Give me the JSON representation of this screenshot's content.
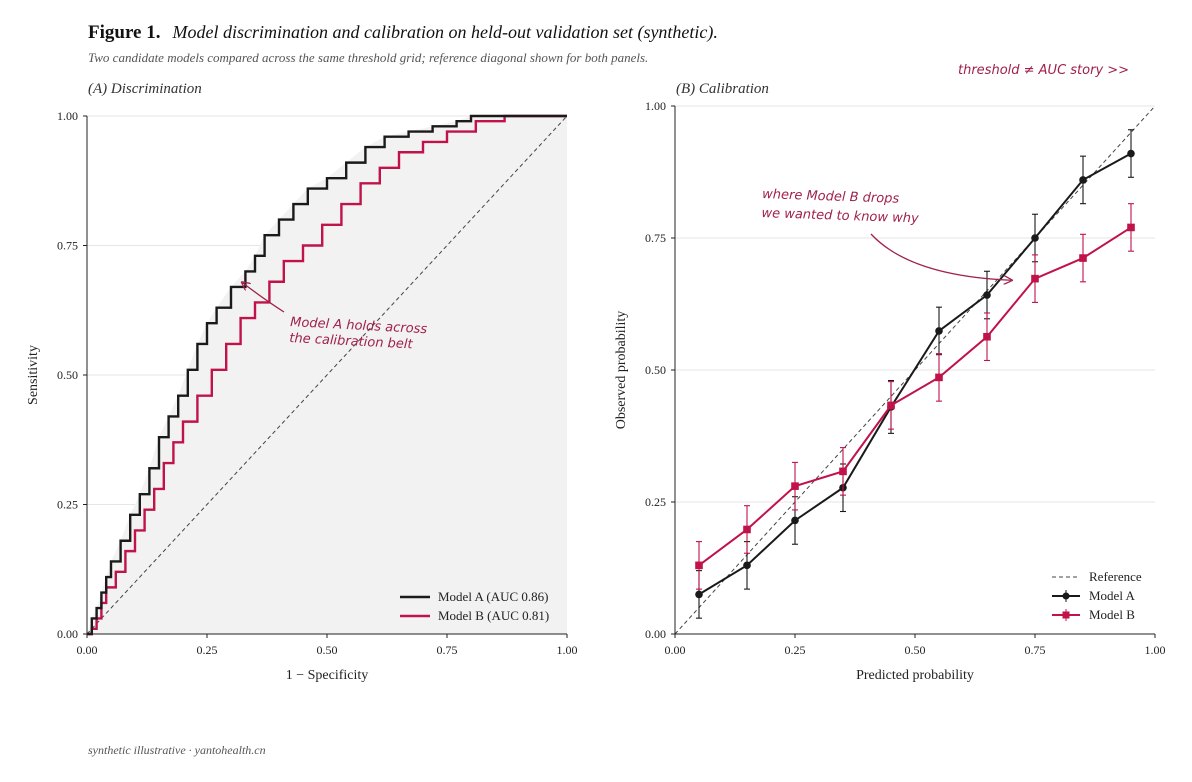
{
  "figure": {
    "label": "Figure 1.",
    "title": "Model discrimination and calibration on held-out validation set (synthetic).",
    "subtitle": "Two candidate models compared across the same threshold grid; reference diagonal shown for both panels.",
    "footer": "synthetic illustrative · yantohealth.cn",
    "corner_note": "threshold ≠ AUC story  >>"
  },
  "colors": {
    "model_a": "#1a1a1a",
    "model_b": "#c0134a",
    "note": "#a0214a",
    "band": "#f2f2f2",
    "grid": "#e6e6e6"
  },
  "chart_data": [
    {
      "type": "line",
      "panel_label": "(A)  Discrimination",
      "xlabel": "1 − Specificity",
      "ylabel": "Sensitivity",
      "xlim": [
        0,
        1
      ],
      "ylim": [
        0,
        1
      ],
      "x_ticks": [
        "0.00",
        "0.25",
        "0.50",
        "0.75",
        "1.00"
      ],
      "y_ticks": [
        "0.00",
        "0.25",
        "0.50",
        "0.75",
        "1.00"
      ],
      "grid": "horizontal",
      "legend_position": "bottom-right",
      "reference_diagonal": true,
      "series": [
        {
          "name": "Model A  (AUC 0.86)",
          "key": "model_a",
          "points": [
            [
              0,
              0
            ],
            [
              0.01,
              0.03
            ],
            [
              0.02,
              0.05
            ],
            [
              0.03,
              0.08
            ],
            [
              0.04,
              0.11
            ],
            [
              0.05,
              0.14
            ],
            [
              0.07,
              0.18
            ],
            [
              0.09,
              0.23
            ],
            [
              0.11,
              0.27
            ],
            [
              0.13,
              0.32
            ],
            [
              0.15,
              0.38
            ],
            [
              0.17,
              0.42
            ],
            [
              0.19,
              0.46
            ],
            [
              0.21,
              0.51
            ],
            [
              0.23,
              0.56
            ],
            [
              0.25,
              0.6
            ],
            [
              0.27,
              0.63
            ],
            [
              0.3,
              0.67
            ],
            [
              0.33,
              0.7
            ],
            [
              0.35,
              0.73
            ],
            [
              0.37,
              0.77
            ],
            [
              0.4,
              0.8
            ],
            [
              0.43,
              0.83
            ],
            [
              0.46,
              0.86
            ],
            [
              0.5,
              0.88
            ],
            [
              0.54,
              0.91
            ],
            [
              0.58,
              0.94
            ],
            [
              0.62,
              0.96
            ],
            [
              0.67,
              0.97
            ],
            [
              0.72,
              0.98
            ],
            [
              0.77,
              0.99
            ],
            [
              0.8,
              1.0
            ],
            [
              1,
              1
            ]
          ]
        },
        {
          "name": "Model B  (AUC 0.81)",
          "key": "model_b",
          "points": [
            [
              0,
              0
            ],
            [
              0.01,
              0.01
            ],
            [
              0.02,
              0.03
            ],
            [
              0.03,
              0.06
            ],
            [
              0.04,
              0.09
            ],
            [
              0.06,
              0.12
            ],
            [
              0.08,
              0.16
            ],
            [
              0.1,
              0.2
            ],
            [
              0.12,
              0.24
            ],
            [
              0.14,
              0.28
            ],
            [
              0.16,
              0.33
            ],
            [
              0.18,
              0.37
            ],
            [
              0.2,
              0.41
            ],
            [
              0.23,
              0.46
            ],
            [
              0.26,
              0.51
            ],
            [
              0.29,
              0.56
            ],
            [
              0.32,
              0.61
            ],
            [
              0.35,
              0.64
            ],
            [
              0.38,
              0.68
            ],
            [
              0.41,
              0.72
            ],
            [
              0.45,
              0.75
            ],
            [
              0.49,
              0.79
            ],
            [
              0.53,
              0.83
            ],
            [
              0.57,
              0.87
            ],
            [
              0.61,
              0.9
            ],
            [
              0.65,
              0.93
            ],
            [
              0.7,
              0.95
            ],
            [
              0.75,
              0.97
            ],
            [
              0.81,
              0.99
            ],
            [
              0.87,
              1.0
            ],
            [
              1,
              1
            ]
          ]
        }
      ],
      "annotation": {
        "text_lines": [
          "Model A holds across",
          "the calibration belt"
        ],
        "points_to": [
          0.32,
          0.68
        ]
      }
    },
    {
      "type": "line",
      "panel_label": "(B)  Calibration",
      "xlabel": "Predicted probability",
      "ylabel": "Observed probability",
      "xlim": [
        0,
        1
      ],
      "ylim": [
        0,
        1
      ],
      "x_ticks": [
        "0.00",
        "0.25",
        "0.50",
        "0.75",
        "1.00"
      ],
      "y_ticks": [
        "0.00",
        "0.25",
        "0.50",
        "0.75",
        "1.00"
      ],
      "grid": "horizontal",
      "legend_position": "bottom-right",
      "x": [
        0.05,
        0.15,
        0.25,
        0.35,
        0.45,
        0.55,
        0.65,
        0.75,
        0.85,
        0.95
      ],
      "series": [
        {
          "name": "Reference",
          "key": "reference",
          "style": "dashed"
        },
        {
          "name": "Model A",
          "key": "model_a",
          "marker": "circle",
          "values": [
            0.075,
            0.13,
            0.215,
            0.277,
            0.43,
            0.574,
            0.642,
            0.75,
            0.86,
            0.91
          ],
          "err": [
            0.045,
            0.045,
            0.045,
            0.045,
            0.05,
            0.045,
            0.045,
            0.045,
            0.045,
            0.045
          ]
        },
        {
          "name": "Model B",
          "key": "model_b",
          "marker": "square",
          "values": [
            0.13,
            0.198,
            0.28,
            0.308,
            0.433,
            0.486,
            0.563,
            0.673,
            0.712,
            0.77
          ],
          "err": [
            0.045,
            0.045,
            0.045,
            0.045,
            0.045,
            0.045,
            0.045,
            0.045,
            0.045,
            0.045
          ]
        }
      ],
      "annotation": {
        "text_lines": [
          "where Model B drops",
          "we wanted to know why"
        ],
        "points_to": [
          0.7,
          0.67
        ]
      }
    }
  ]
}
